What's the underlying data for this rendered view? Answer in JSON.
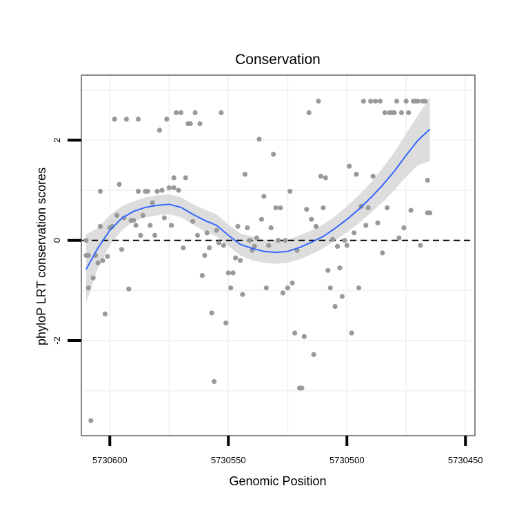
{
  "chart_data": {
    "type": "scatter",
    "title": "Conservation",
    "xlabel": "Genomic Position",
    "ylabel": "phyloP LRT conservation scores",
    "x_reversed": true,
    "xlim": [
      5730612,
      5730446
    ],
    "ylim": [
      -3.9,
      3.3
    ],
    "x_ticks": [
      5730600,
      5730550,
      5730500,
      5730450
    ],
    "x_tick_labels": [
      "5730600",
      "5730550",
      "5730500",
      "5730450"
    ],
    "y_ticks": [
      -2,
      0,
      2
    ],
    "y_tick_labels": [
      "-2",
      "0",
      "2"
    ],
    "reference_line": 0,
    "grid": true,
    "colors": {
      "points": "#999999",
      "smooth_line": "#3366ff",
      "confidence_band": "#d9d9d9",
      "reference_line": "#000000",
      "panel_border": "#888888",
      "grid": "#f2f2f2"
    },
    "points": [
      [
        5730610,
        0.0
      ],
      [
        5730610,
        -0.3
      ],
      [
        5730609,
        -0.95
      ],
      [
        5730609,
        -0.3
      ],
      [
        5730608,
        -3.6
      ],
      [
        5730607,
        -0.75
      ],
      [
        5730606,
        -0.3
      ],
      [
        5730605,
        -0.45
      ],
      [
        5730604,
        0.28
      ],
      [
        5730604,
        0.98
      ],
      [
        5730603,
        -0.4
      ],
      [
        5730602,
        -1.47
      ],
      [
        5730601,
        -0.32
      ],
      [
        5730600,
        0.25
      ],
      [
        5730599,
        0.28
      ],
      [
        5730598,
        2.42
      ],
      [
        5730597,
        0.5
      ],
      [
        5730596,
        1.12
      ],
      [
        5730595,
        -0.18
      ],
      [
        5730594,
        0.45
      ],
      [
        5730593,
        2.42
      ],
      [
        5730592,
        -0.97
      ],
      [
        5730591,
        0.4
      ],
      [
        5730590,
        0.4
      ],
      [
        5730589,
        0.3
      ],
      [
        5730588,
        0.98
      ],
      [
        5730588,
        2.42
      ],
      [
        5730587,
        0.1
      ],
      [
        5730586,
        0.5
      ],
      [
        5730585,
        0.98
      ],
      [
        5730584,
        0.98
      ],
      [
        5730583,
        0.3
      ],
      [
        5730582,
        0.75
      ],
      [
        5730581,
        0.1
      ],
      [
        5730580,
        0.98
      ],
      [
        5730579,
        2.2
      ],
      [
        5730578,
        1.0
      ],
      [
        5730577,
        0.45
      ],
      [
        5730576,
        2.42
      ],
      [
        5730575,
        1.05
      ],
      [
        5730574,
        0.3
      ],
      [
        5730573,
        1.25
      ],
      [
        5730573,
        1.05
      ],
      [
        5730572,
        2.55
      ],
      [
        5730571,
        1.0
      ],
      [
        5730570,
        2.55
      ],
      [
        5730569,
        -0.15
      ],
      [
        5730568,
        1.25
      ],
      [
        5730567,
        2.33
      ],
      [
        5730566,
        2.33
      ],
      [
        5730565,
        0.38
      ],
      [
        5730564,
        2.55
      ],
      [
        5730563,
        0.1
      ],
      [
        5730562,
        2.33
      ],
      [
        5730561,
        -0.7
      ],
      [
        5730560,
        -0.3
      ],
      [
        5730559,
        0.15
      ],
      [
        5730558,
        -0.15
      ],
      [
        5730557,
        -1.45
      ],
      [
        5730556,
        -2.82
      ],
      [
        5730555,
        0.2
      ],
      [
        5730554,
        -0.05
      ],
      [
        5730553,
        2.55
      ],
      [
        5730552,
        -0.1
      ],
      [
        5730551,
        -1.65
      ],
      [
        5730550,
        -0.65
      ],
      [
        5730549,
        -0.95
      ],
      [
        5730548,
        -0.65
      ],
      [
        5730547,
        -0.35
      ],
      [
        5730546,
        0.28
      ],
      [
        5730545,
        -0.4
      ],
      [
        5730544,
        -1.08
      ],
      [
        5730543,
        1.32
      ],
      [
        5730542,
        0.25
      ],
      [
        5730541,
        0.0
      ],
      [
        5730540,
        -0.2
      ],
      [
        5730539,
        -0.12
      ],
      [
        5730538,
        0.05
      ],
      [
        5730537,
        2.02
      ],
      [
        5730536,
        0.42
      ],
      [
        5730535,
        0.88
      ],
      [
        5730534,
        -0.95
      ],
      [
        5730533,
        -0.1
      ],
      [
        5730532,
        0.25
      ],
      [
        5730531,
        1.72
      ],
      [
        5730530,
        0.65
      ],
      [
        5730529,
        0.0
      ],
      [
        5730528,
        0.65
      ],
      [
        5730527,
        -1.05
      ],
      [
        5730526,
        0.0
      ],
      [
        5730525,
        -0.95
      ],
      [
        5730524,
        0.98
      ],
      [
        5730523,
        -0.85
      ],
      [
        5730522,
        -1.85
      ],
      [
        5730521,
        -0.2
      ],
      [
        5730520,
        -2.95
      ],
      [
        5730519,
        -2.95
      ],
      [
        5730518,
        -1.92
      ],
      [
        5730517,
        0.62
      ],
      [
        5730516,
        2.55
      ],
      [
        5730515,
        0.42
      ],
      [
        5730514,
        -2.28
      ],
      [
        5730513,
        0.28
      ],
      [
        5730512,
        2.78
      ],
      [
        5730511,
        1.28
      ],
      [
        5730510,
        0.65
      ],
      [
        5730509,
        1.25
      ],
      [
        5730508,
        -0.6
      ],
      [
        5730507,
        -0.95
      ],
      [
        5730506,
        0.02
      ],
      [
        5730505,
        -1.32
      ],
      [
        5730504,
        -0.12
      ],
      [
        5730503,
        -0.55
      ],
      [
        5730502,
        -1.12
      ],
      [
        5730501,
        0.0
      ],
      [
        5730500,
        -0.1
      ],
      [
        5730499,
        1.48
      ],
      [
        5730498,
        -1.85
      ],
      [
        5730497,
        0.15
      ],
      [
        5730496,
        1.32
      ],
      [
        5730495,
        -0.95
      ],
      [
        5730494,
        0.68
      ],
      [
        5730493,
        2.78
      ],
      [
        5730492,
        0.3
      ],
      [
        5730491,
        0.65
      ],
      [
        5730490,
        2.78
      ],
      [
        5730489,
        1.28
      ],
      [
        5730488,
        2.78
      ],
      [
        5730487,
        0.35
      ],
      [
        5730486,
        2.78
      ],
      [
        5730485,
        -0.25
      ],
      [
        5730484,
        2.55
      ],
      [
        5730483,
        0.65
      ],
      [
        5730482,
        2.55
      ],
      [
        5730481,
        2.55
      ],
      [
        5730480,
        2.55
      ],
      [
        5730479,
        2.78
      ],
      [
        5730478,
        0.05
      ],
      [
        5730477,
        2.55
      ],
      [
        5730476,
        0.25
      ],
      [
        5730475,
        2.78
      ],
      [
        5730474,
        2.55
      ],
      [
        5730473,
        0.6
      ],
      [
        5730472,
        2.78
      ],
      [
        5730471,
        2.78
      ],
      [
        5730470,
        2.78
      ],
      [
        5730469,
        -0.1
      ],
      [
        5730468,
        2.78
      ],
      [
        5730467,
        2.78
      ],
      [
        5730466,
        1.2
      ],
      [
        5730466,
        0.55
      ],
      [
        5730465,
        0.55
      ]
    ],
    "smooth": {
      "method": "loess",
      "x": [
        5730610,
        5730605,
        5730600,
        5730595,
        5730590,
        5730585,
        5730580,
        5730575,
        5730570,
        5730565,
        5730560,
        5730555,
        5730550,
        5730545,
        5730540,
        5730535,
        5730530,
        5730525,
        5730520,
        5730515,
        5730510,
        5730505,
        5730500,
        5730495,
        5730490,
        5730485,
        5730480,
        5730475,
        5730470,
        5730465
      ],
      "y": [
        -0.58,
        -0.15,
        0.2,
        0.44,
        0.58,
        0.66,
        0.7,
        0.72,
        0.66,
        0.52,
        0.4,
        0.3,
        0.1,
        -0.08,
        -0.16,
        -0.22,
        -0.24,
        -0.22,
        -0.14,
        -0.04,
        0.08,
        0.24,
        0.42,
        0.62,
        0.85,
        1.1,
        1.38,
        1.7,
        2.0,
        2.22
      ],
      "lower": [
        -1.25,
        -0.55,
        -0.1,
        0.2,
        0.38,
        0.46,
        0.5,
        0.52,
        0.46,
        0.32,
        0.18,
        0.08,
        -0.12,
        -0.3,
        -0.4,
        -0.45,
        -0.47,
        -0.45,
        -0.38,
        -0.28,
        -0.16,
        0.0,
        0.16,
        0.34,
        0.55,
        0.76,
        1.0,
        1.27,
        1.5,
        1.58
      ],
      "upper": [
        0.12,
        0.25,
        0.5,
        0.68,
        0.78,
        0.86,
        0.9,
        0.92,
        0.86,
        0.72,
        0.62,
        0.52,
        0.32,
        0.14,
        0.08,
        0.01,
        -0.01,
        0.01,
        0.1,
        0.2,
        0.32,
        0.48,
        0.68,
        0.9,
        1.15,
        1.44,
        1.76,
        2.13,
        2.5,
        2.86
      ]
    }
  }
}
